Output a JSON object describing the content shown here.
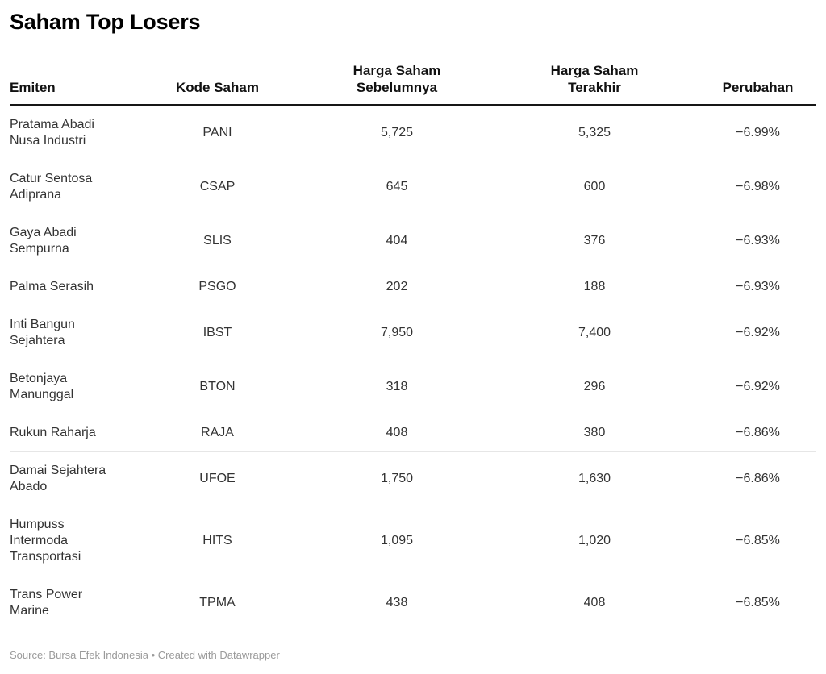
{
  "title": "Saham Top Losers",
  "footer": "Source: Bursa Efek Indonesia • Created with Datawrapper",
  "colors": {
    "title_text": "#000000",
    "header_text": "#111111",
    "body_text": "#333333",
    "header_rule": "#161616",
    "row_divider": "#e6e6e6",
    "footer_text": "#9a9a9a",
    "background": "#ffffff"
  },
  "table": {
    "columns": [
      {
        "label": "Emiten",
        "align": "left"
      },
      {
        "label": "Kode Saham",
        "align": "center"
      },
      {
        "label": "Harga Saham\nSebelumnya",
        "align": "center"
      },
      {
        "label": "Harga Saham\nTerakhir",
        "align": "center"
      },
      {
        "label": "Perubahan",
        "align": "center"
      }
    ],
    "rows": [
      {
        "emiten": "Pratama Abadi\nNusa Industri",
        "kode": "PANI",
        "sebelumnya": "5,725",
        "terakhir": "5,325",
        "perubahan": "−6.99%"
      },
      {
        "emiten": "Catur Sentosa\nAdiprana",
        "kode": "CSAP",
        "sebelumnya": "645",
        "terakhir": "600",
        "perubahan": "−6.98%"
      },
      {
        "emiten": "Gaya Abadi\nSempurna",
        "kode": "SLIS",
        "sebelumnya": "404",
        "terakhir": "376",
        "perubahan": "−6.93%"
      },
      {
        "emiten": "Palma Serasih",
        "kode": "PSGO",
        "sebelumnya": "202",
        "terakhir": "188",
        "perubahan": "−6.93%"
      },
      {
        "emiten": "Inti Bangun\nSejahtera",
        "kode": "IBST",
        "sebelumnya": "7,950",
        "terakhir": "7,400",
        "perubahan": "−6.92%"
      },
      {
        "emiten": "Betonjaya\nManunggal",
        "kode": "BTON",
        "sebelumnya": "318",
        "terakhir": "296",
        "perubahan": "−6.92%"
      },
      {
        "emiten": "Rukun Raharja",
        "kode": "RAJA",
        "sebelumnya": "408",
        "terakhir": "380",
        "perubahan": "−6.86%"
      },
      {
        "emiten": "Damai Sejahtera\nAbado",
        "kode": "UFOE",
        "sebelumnya": "1,750",
        "terakhir": "1,630",
        "perubahan": "−6.86%"
      },
      {
        "emiten": "Humpuss\nIntermoda\nTransportasi",
        "kode": "HITS",
        "sebelumnya": "1,095",
        "terakhir": "1,020",
        "perubahan": "−6.85%"
      },
      {
        "emiten": "Trans Power\nMarine",
        "kode": "TPMA",
        "sebelumnya": "438",
        "terakhir": "408",
        "perubahan": "−6.85%"
      }
    ]
  },
  "chart_data": {
    "type": "table",
    "title": "Saham Top Losers",
    "columns": [
      "Emiten",
      "Kode Saham",
      "Harga Saham Sebelumnya",
      "Harga Saham Terakhir",
      "Perubahan"
    ],
    "rows": [
      [
        "Pratama Abadi Nusa Industri",
        "PANI",
        5725,
        5325,
        -6.99
      ],
      [
        "Catur Sentosa Adiprana",
        "CSAP",
        645,
        600,
        -6.98
      ],
      [
        "Gaya Abadi Sempurna",
        "SLIS",
        404,
        376,
        -6.93
      ],
      [
        "Palma Serasih",
        "PSGO",
        202,
        188,
        -6.93
      ],
      [
        "Inti Bangun Sejahtera",
        "IBST",
        7950,
        7400,
        -6.92
      ],
      [
        "Betonjaya Manunggal",
        "BTON",
        318,
        296,
        -6.92
      ],
      [
        "Rukun Raharja",
        "RAJA",
        408,
        380,
        -6.86
      ],
      [
        "Damai Sejahtera Abado",
        "UFOE",
        1750,
        1630,
        -6.86
      ],
      [
        "Humpuss Intermoda Transportasi",
        "HITS",
        1095,
        1020,
        -6.85
      ],
      [
        "Trans Power Marine",
        "TPMA",
        438,
        408,
        -6.85
      ]
    ],
    "perubahan_unit": "%",
    "source": "Bursa Efek Indonesia",
    "attribution": "Created with Datawrapper"
  }
}
